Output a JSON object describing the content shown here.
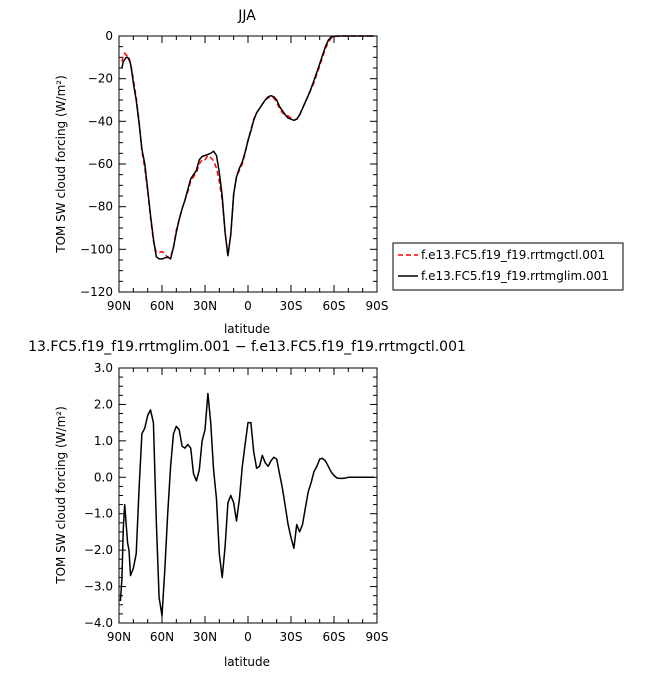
{
  "chart_data": [
    {
      "type": "line",
      "title": "JJA",
      "xlabel": "latitude",
      "ylabel": "TOM SW cloud forcing (W/m²)",
      "xlim": [
        90,
        -90
      ],
      "ylim": [
        -120,
        0
      ],
      "xticks": [
        90,
        60,
        30,
        0,
        -30,
        -60,
        -90
      ],
      "xtick_labels": [
        "90N",
        "60N",
        "30N",
        "0",
        "30S",
        "60S",
        "90S"
      ],
      "yticks": [
        0,
        -20,
        -40,
        -60,
        -80,
        -100,
        -120
      ],
      "ytick_labels": [
        "0",
        "−20",
        "−40",
        "−60",
        "−80",
        "−100",
        "−120"
      ],
      "legend_position": "right",
      "series": [
        {
          "name": "f.e13.FC5.f19_f19.rrtmgctl.001",
          "color": "#ff0000",
          "dash": "dashed",
          "x": [
            88,
            87,
            86,
            85,
            84,
            83,
            82,
            81,
            80,
            78,
            76,
            74,
            72,
            70,
            68,
            66,
            64,
            62,
            60,
            58,
            56,
            54,
            52,
            50,
            48,
            46,
            44,
            42,
            40,
            38,
            36,
            34,
            32,
            30,
            28,
            26,
            24,
            22,
            20,
            18,
            16,
            14,
            12,
            10,
            8,
            6,
            4,
            2,
            0,
            -2,
            -4,
            -6,
            -8,
            -10,
            -12,
            -14,
            -16,
            -18,
            -20,
            -22,
            -24,
            -26,
            -28,
            -30,
            -32,
            -34,
            -36,
            -38,
            -40,
            -42,
            -44,
            -46,
            -48,
            -50,
            -52,
            -54,
            -56,
            -58,
            -60,
            -62,
            -64,
            -66,
            -68,
            -70,
            -72,
            -74,
            -76,
            -78,
            -80,
            -82,
            -84,
            -86,
            -88
          ],
          "y": [
            -12,
            -9,
            -8,
            -9,
            -9,
            -10,
            -13,
            -16,
            -20,
            -29,
            -40,
            -54,
            -62,
            -73,
            -85,
            -96,
            -101.5,
            -101.5,
            -101,
            -102,
            -104,
            -103.5,
            -99,
            -91,
            -86,
            -81,
            -77,
            -73,
            -68,
            -66,
            -64,
            -60,
            -58,
            -58,
            -56,
            -57,
            -58.5,
            -62,
            -68,
            -77,
            -92,
            -103,
            -93,
            -74,
            -66,
            -63,
            -60,
            -55,
            -49,
            -44,
            -39,
            -36,
            -34,
            -32,
            -30,
            -29,
            -28.5,
            -29,
            -31,
            -34,
            -36,
            -37,
            -37.5,
            -38.5,
            -39.5,
            -39,
            -37,
            -34,
            -31,
            -28,
            -25,
            -22,
            -18,
            -14,
            -10,
            -6,
            -3,
            -1,
            -0.3,
            -0.1,
            0,
            0,
            0,
            0,
            0,
            0,
            0,
            0,
            0,
            0,
            0,
            0,
            0
          ]
        },
        {
          "name": "f.e13.FC5.f19_f19.rrtmglim.001",
          "color": "#000000",
          "dash": "solid",
          "x": [
            88,
            87,
            86,
            85,
            84,
            83,
            82,
            81,
            80,
            78,
            76,
            74,
            72,
            70,
            68,
            66,
            64,
            62,
            60,
            58,
            56,
            54,
            52,
            50,
            48,
            46,
            44,
            42,
            40,
            38,
            36,
            34,
            32,
            30,
            28,
            26,
            24,
            22,
            20,
            18,
            16,
            14,
            12,
            10,
            8,
            6,
            4,
            2,
            0,
            -2,
            -4,
            -6,
            -8,
            -10,
            -12,
            -14,
            -16,
            -18,
            -20,
            -22,
            -24,
            -26,
            -28,
            -30,
            -32,
            -34,
            -36,
            -38,
            -40,
            -42,
            -44,
            -46,
            -48,
            -50,
            -52,
            -54,
            -56,
            -58,
            -60,
            -62,
            -64,
            -66,
            -68,
            -70,
            -72,
            -74,
            -76,
            -78,
            -80,
            -82,
            -84,
            -86,
            -88
          ],
          "y": [
            -15,
            -12,
            -11,
            -10,
            -10,
            -11,
            -13,
            -17,
            -22,
            -30,
            -41,
            -53,
            -60,
            -72,
            -84,
            -95,
            -103.5,
            -104.5,
            -104.5,
            -104,
            -103.5,
            -104.5,
            -99,
            -92,
            -86,
            -81,
            -77,
            -72,
            -67,
            -65,
            -63,
            -58,
            -56.5,
            -56,
            -55.5,
            -55,
            -54,
            -56,
            -64,
            -75,
            -92,
            -103,
            -93,
            -74,
            -66,
            -62,
            -59,
            -54.5,
            -49,
            -44.5,
            -39.5,
            -36,
            -34,
            -32,
            -30,
            -28.5,
            -28,
            -28.5,
            -30,
            -33,
            -35,
            -37,
            -38.5,
            -39,
            -39.5,
            -39,
            -37,
            -34,
            -31,
            -28,
            -24.5,
            -21,
            -17,
            -13,
            -9,
            -5,
            -2,
            -0.5,
            -0.1,
            0,
            0,
            0,
            0,
            0,
            0,
            0,
            0,
            0,
            0,
            0,
            0,
            0,
            0
          ]
        }
      ]
    },
    {
      "type": "line",
      "title": "13.FC5.f19_f19.rrtmglim.001 − f.e13.FC5.f19_f19.rrtmgctl.001",
      "xlabel": "latitude",
      "ylabel": "TOM SW cloud forcing (W/m²)",
      "xlim": [
        90,
        -90
      ],
      "ylim": [
        -4,
        3
      ],
      "xticks": [
        90,
        60,
        30,
        0,
        -30,
        -60,
        -90
      ],
      "xtick_labels": [
        "90N",
        "60N",
        "30N",
        "0",
        "30S",
        "60S",
        "90S"
      ],
      "yticks": [
        3,
        2,
        1,
        0,
        -1,
        -2,
        -3,
        -4
      ],
      "ytick_labels": [
        "3.0",
        "2.0",
        "1.0",
        "0.0",
        "−1.0",
        "−2.0",
        "−3.0",
        "−4.0"
      ],
      "series": [
        {
          "color": "#000000",
          "dash": "solid",
          "x": [
            89,
            88,
            87,
            86,
            85,
            84,
            83,
            82,
            80,
            78,
            76,
            74,
            72,
            70,
            68,
            66,
            64,
            62,
            60,
            58,
            56,
            54,
            52,
            50,
            48,
            46,
            44,
            42,
            40,
            38,
            36,
            34,
            32,
            30,
            28,
            26,
            24,
            22,
            20,
            18,
            16,
            14,
            12,
            10,
            8,
            6,
            4,
            2,
            0,
            -2,
            -4,
            -6,
            -8,
            -10,
            -12,
            -14,
            -16,
            -18,
            -20,
            -22,
            -24,
            -26,
            -28,
            -30,
            -32,
            -34,
            -36,
            -38,
            -40,
            -42,
            -44,
            -46,
            -48,
            -50,
            -52,
            -54,
            -56,
            -58,
            -60,
            -62,
            -64,
            -66,
            -68,
            -70,
            -72,
            -74,
            -76,
            -78,
            -80,
            -82,
            -84,
            -86,
            -88
          ],
          "y": [
            -3.4,
            -2.8,
            -1.4,
            -0.75,
            -1.3,
            -1.8,
            -2.0,
            -2.7,
            -2.5,
            -2.1,
            -0.3,
            1.2,
            1.35,
            1.7,
            1.85,
            1.5,
            -1.2,
            -3.3,
            -3.8,
            -2.5,
            -1.0,
            0.3,
            1.2,
            1.4,
            1.3,
            0.85,
            0.8,
            0.9,
            0.8,
            0.1,
            -0.1,
            0.2,
            1.0,
            1.3,
            2.3,
            1.5,
            0.2,
            -0.6,
            -2.1,
            -2.75,
            -1.9,
            -0.7,
            -0.5,
            -0.7,
            -1.2,
            -0.6,
            0.3,
            0.9,
            1.5,
            1.5,
            0.7,
            0.25,
            0.3,
            0.6,
            0.4,
            0.3,
            0.45,
            0.55,
            0.5,
            0.1,
            -0.3,
            -0.8,
            -1.3,
            -1.65,
            -1.95,
            -1.3,
            -1.5,
            -1.3,
            -0.85,
            -0.4,
            -0.15,
            0.15,
            0.3,
            0.5,
            0.52,
            0.45,
            0.3,
            0.15,
            0.05,
            -0.02,
            -0.03,
            -0.03,
            -0.02,
            0,
            0,
            0,
            0,
            0,
            0,
            0,
            0,
            0,
            0
          ]
        }
      ]
    }
  ]
}
